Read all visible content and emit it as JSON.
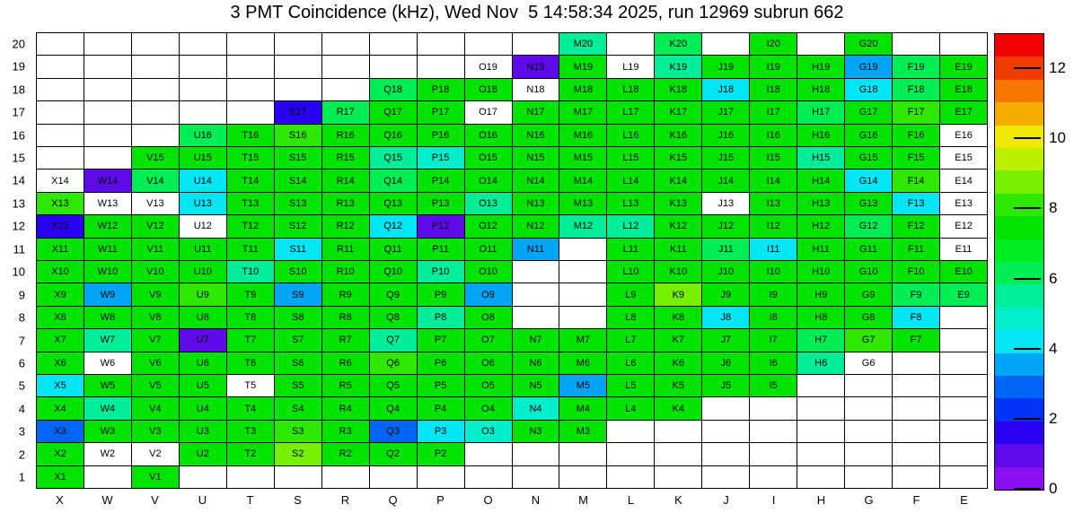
{
  "title": "3 PMT Coincidence (kHz), Wed Nov  5 14:58:34 2025, run 12969 subrun 662",
  "chart_data": {
    "type": "heatmap",
    "columns": [
      "X",
      "W",
      "V",
      "U",
      "T",
      "S",
      "R",
      "Q",
      "P",
      "O",
      "N",
      "M",
      "L",
      "K",
      "J",
      "I",
      "H",
      "G",
      "F",
      "E"
    ],
    "rows": [
      20,
      19,
      18,
      17,
      16,
      15,
      14,
      13,
      12,
      11,
      10,
      9,
      8,
      7,
      6,
      5,
      4,
      3,
      2,
      1
    ],
    "cell_label_format": "column letter + row number (blank cells have no label)",
    "palette": {
      "g": "#00e400",
      "bg": "#2fe800",
      "yg": "#77f000",
      "sg": "#00ee55",
      "tg": "#00ee99",
      "tl": "#00eecc",
      "cy": "#00e6f5",
      "sky": "#00a5f5",
      "db": "#0066f5",
      "bl": "#2a00f0",
      "vi": "#5f0ae8",
      "w": "#ffffff"
    },
    "class_value_estimate_kHz": {
      "g": 7.0,
      "bg": 7.6,
      "yg": 8.5,
      "sg": 6.2,
      "tg": 5.5,
      "tl": 4.8,
      "cy": 4.2,
      "sky": 3.3,
      "db": 2.6,
      "bl": 1.8,
      "vi": 1.0,
      "w": 0
    },
    "cells": {
      "20": [
        "",
        "",
        "",
        "",
        "",
        "",
        "",
        "",
        "",
        "",
        "",
        "tg",
        "",
        "sg",
        "",
        "g",
        "",
        "g",
        "",
        ""
      ],
      "19": [
        "",
        "",
        "",
        "",
        "",
        "",
        "",
        "",
        "",
        "w",
        "vi",
        "g",
        "w",
        "tg",
        "g",
        "g",
        "g",
        "sky",
        "sg",
        "g"
      ],
      "18": [
        "",
        "",
        "",
        "",
        "",
        "",
        "",
        "sg",
        "g",
        "g",
        "w",
        "g",
        "g",
        "g",
        "cy",
        "g",
        "g",
        "cy",
        "sg",
        "g"
      ],
      "17": [
        "",
        "",
        "",
        "",
        "",
        "bl",
        "sg",
        "g",
        "g",
        "w",
        "g",
        "g",
        "g",
        "g",
        "g",
        "g",
        "sg",
        "g",
        "bg",
        "g"
      ],
      "16": [
        "",
        "",
        "",
        "sg",
        "g",
        "bg",
        "g",
        "g",
        "g",
        "g",
        "g",
        "g",
        "g",
        "g",
        "g",
        "g",
        "g",
        "g",
        "g",
        "w"
      ],
      "15": [
        "",
        "",
        "g",
        "g",
        "g",
        "g",
        "g",
        "tg",
        "tl",
        "g",
        "g",
        "g",
        "g",
        "g",
        "g",
        "g",
        "tg",
        "g",
        "g",
        "w"
      ],
      "14": [
        "w",
        "vi",
        "sg",
        "cy",
        "g",
        "g",
        "g",
        "sg",
        "g",
        "g",
        "g",
        "g",
        "g",
        "g",
        "g",
        "g",
        "g",
        "cy",
        "bg",
        "w"
      ],
      "13": [
        "bg",
        "w",
        "w",
        "cy",
        "g",
        "g",
        "g",
        "g",
        "g",
        "tg",
        "g",
        "g",
        "g",
        "g",
        "w",
        "g",
        "g",
        "g",
        "cy",
        "w"
      ],
      "12": [
        "bl",
        "g",
        "g",
        "w",
        "g",
        "g",
        "g",
        "cy",
        "vi",
        "g",
        "g",
        "tg",
        "tg",
        "g",
        "g",
        "g",
        "g",
        "sg",
        "g",
        "w"
      ],
      "11": [
        "g",
        "g",
        "g",
        "g",
        "g",
        "cy",
        "g",
        "g",
        "g",
        "g",
        "sky",
        "",
        "g",
        "g",
        "sg",
        "cy",
        "g",
        "g",
        "g",
        "w"
      ],
      "10": [
        "g",
        "g",
        "g",
        "g",
        "tg",
        "g",
        "g",
        "g",
        "tg",
        "g",
        "",
        "",
        "g",
        "g",
        "g",
        "g",
        "g",
        "g",
        "g",
        "g"
      ],
      "9": [
        "g",
        "sky",
        "g",
        "bg",
        "g",
        "sky",
        "g",
        "g",
        "g",
        "sky",
        "",
        "",
        "g",
        "yg",
        "g",
        "g",
        "g",
        "g",
        "sg",
        "sg"
      ],
      "8": [
        "g",
        "g",
        "g",
        "g",
        "g",
        "g",
        "g",
        "g",
        "tg",
        "g",
        "",
        "",
        "g",
        "g",
        "cy",
        "g",
        "g",
        "g",
        "cy",
        ""
      ],
      "7": [
        "g",
        "tg",
        "g",
        "vi",
        "g",
        "g",
        "g",
        "tg",
        "g",
        "g",
        "g",
        "g",
        "g",
        "g",
        "g",
        "g",
        "sg",
        "bg",
        "g",
        ""
      ],
      "6": [
        "g",
        "w",
        "g",
        "g",
        "g",
        "g",
        "g",
        "bg",
        "g",
        "g",
        "g",
        "g",
        "g",
        "g",
        "g",
        "g",
        "tg",
        "w",
        "",
        ""
      ],
      "5": [
        "cy",
        "g",
        "g",
        "g",
        "w",
        "g",
        "g",
        "g",
        "g",
        "g",
        "g",
        "sky",
        "g",
        "g",
        "g",
        "g",
        "",
        "",
        "",
        ""
      ],
      "4": [
        "g",
        "tg",
        "g",
        "g",
        "g",
        "g",
        "g",
        "g",
        "g",
        "g",
        "tl",
        "g",
        "g",
        "g",
        "",
        "",
        "",
        "",
        "",
        ""
      ],
      "3": [
        "db",
        "g",
        "g",
        "g",
        "g",
        "bg",
        "g",
        "db",
        "cy",
        "tl",
        "g",
        "g",
        "",
        "",
        "",
        "",
        "",
        "",
        "",
        ""
      ],
      "2": [
        "g",
        "w",
        "w",
        "g",
        "g",
        "yg",
        "g",
        "g",
        "g",
        "",
        "",
        "",
        "",
        "",
        "",
        "",
        "",
        "",
        "",
        ""
      ],
      "1": [
        "g",
        "",
        "g",
        "",
        "",
        "",
        "",
        "",
        "",
        "",
        "",
        "",
        "",
        "",
        "",
        "",
        "",
        "",
        "",
        ""
      ]
    },
    "colorbar": {
      "zmin": 0,
      "zmax": 13,
      "band_colors_bottom_to_top": [
        "#8a0ff0",
        "#5f0ae8",
        "#2a00f0",
        "#0033f5",
        "#0066f5",
        "#00a5f5",
        "#00e6f5",
        "#00eecc",
        "#00ee99",
        "#00ee55",
        "#00ee22",
        "#00e400",
        "#2fe800",
        "#77f000",
        "#bbf000",
        "#f0e800",
        "#f5aa00",
        "#f57700",
        "#f03c00",
        "#f00000"
      ],
      "tick_values": [
        0,
        2,
        4,
        6,
        8,
        10,
        12
      ],
      "tick_labels": [
        "0",
        "2",
        "4",
        "6",
        "8",
        "10",
        "12"
      ]
    },
    "grid": true,
    "legend_position": "right-colorbar"
  }
}
